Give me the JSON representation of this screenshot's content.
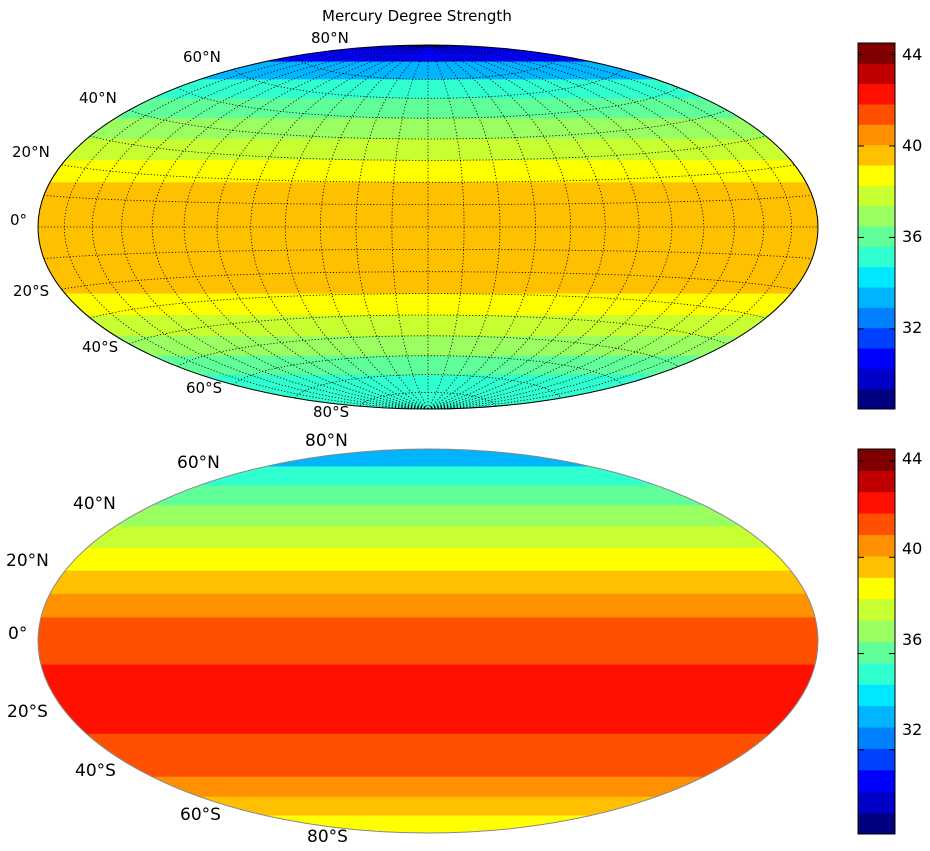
{
  "title": "Mercury Degree Strength",
  "colormap": {
    "name": "jet",
    "stops": [
      "#000080",
      "#0000c8",
      "#0000ff",
      "#0040ff",
      "#0080ff",
      "#00b4ff",
      "#00e8ff",
      "#30ffd0",
      "#60ff9a",
      "#9aff60",
      "#c8ff30",
      "#ffff00",
      "#ffc000",
      "#ff9000",
      "#ff5000",
      "#ff1000",
      "#c00000",
      "#800000"
    ]
  },
  "maps": [
    {
      "projection": "Hammer/Aitoff equal-area",
      "graticule": true,
      "lat_labels": [
        "80°N",
        "60°N",
        "40°N",
        "20°N",
        "0°",
        "20°S",
        "40°S",
        "60°S",
        "80°S"
      ],
      "colorbar": {
        "ticks": [
          "44",
          "40",
          "36",
          "32"
        ],
        "range": [
          28.5,
          44.5
        ]
      },
      "bands": [
        {
          "lat": 85,
          "value": 30.5
        },
        {
          "lat": 75,
          "value": 33.5
        },
        {
          "lat": 65,
          "value": 35.0
        },
        {
          "lat": 55,
          "value": 36.3
        },
        {
          "lat": 45,
          "value": 37.2
        },
        {
          "lat": 35,
          "value": 37.8
        },
        {
          "lat": 25,
          "value": 38.6
        },
        {
          "lat": 15,
          "value": 39.3
        },
        {
          "lat": 5,
          "value": 39.8
        },
        {
          "lat": -5,
          "value": 39.8
        },
        {
          "lat": -15,
          "value": 39.6
        },
        {
          "lat": -25,
          "value": 39.4
        },
        {
          "lat": -35,
          "value": 38.6
        },
        {
          "lat": -45,
          "value": 37.8
        },
        {
          "lat": -55,
          "value": 36.8
        },
        {
          "lat": -65,
          "value": 36.0
        },
        {
          "lat": -75,
          "value": 35.2
        },
        {
          "lat": -85,
          "value": 34.8
        }
      ]
    },
    {
      "projection": "Hammer/Aitoff equal-area",
      "graticule": false,
      "lat_labels": [
        "80°N",
        "60°N",
        "40°N",
        "20°N",
        "0°",
        "20°S",
        "40°S",
        "60°S",
        "80°S"
      ],
      "colorbar": {
        "ticks": [
          "44",
          "40",
          "36",
          "32"
        ],
        "range": [
          28.5,
          44.5
        ]
      },
      "bands": [
        {
          "lat": 85,
          "value": 33.5
        },
        {
          "lat": 75,
          "value": 35.0
        },
        {
          "lat": 65,
          "value": 36.0
        },
        {
          "lat": 55,
          "value": 37.0
        },
        {
          "lat": 45,
          "value": 38.0
        },
        {
          "lat": 35,
          "value": 39.0
        },
        {
          "lat": 25,
          "value": 40.0
        },
        {
          "lat": 15,
          "value": 40.6
        },
        {
          "lat": 5,
          "value": 41.2
        },
        {
          "lat": -5,
          "value": 41.8
        },
        {
          "lat": -15,
          "value": 42.2
        },
        {
          "lat": -25,
          "value": 42.4
        },
        {
          "lat": -35,
          "value": 42.0
        },
        {
          "lat": -45,
          "value": 41.6
        },
        {
          "lat": -55,
          "value": 41.0
        },
        {
          "lat": -65,
          "value": 40.5
        },
        {
          "lat": -75,
          "value": 40.0
        },
        {
          "lat": -85,
          "value": 38.8
        }
      ]
    }
  ]
}
